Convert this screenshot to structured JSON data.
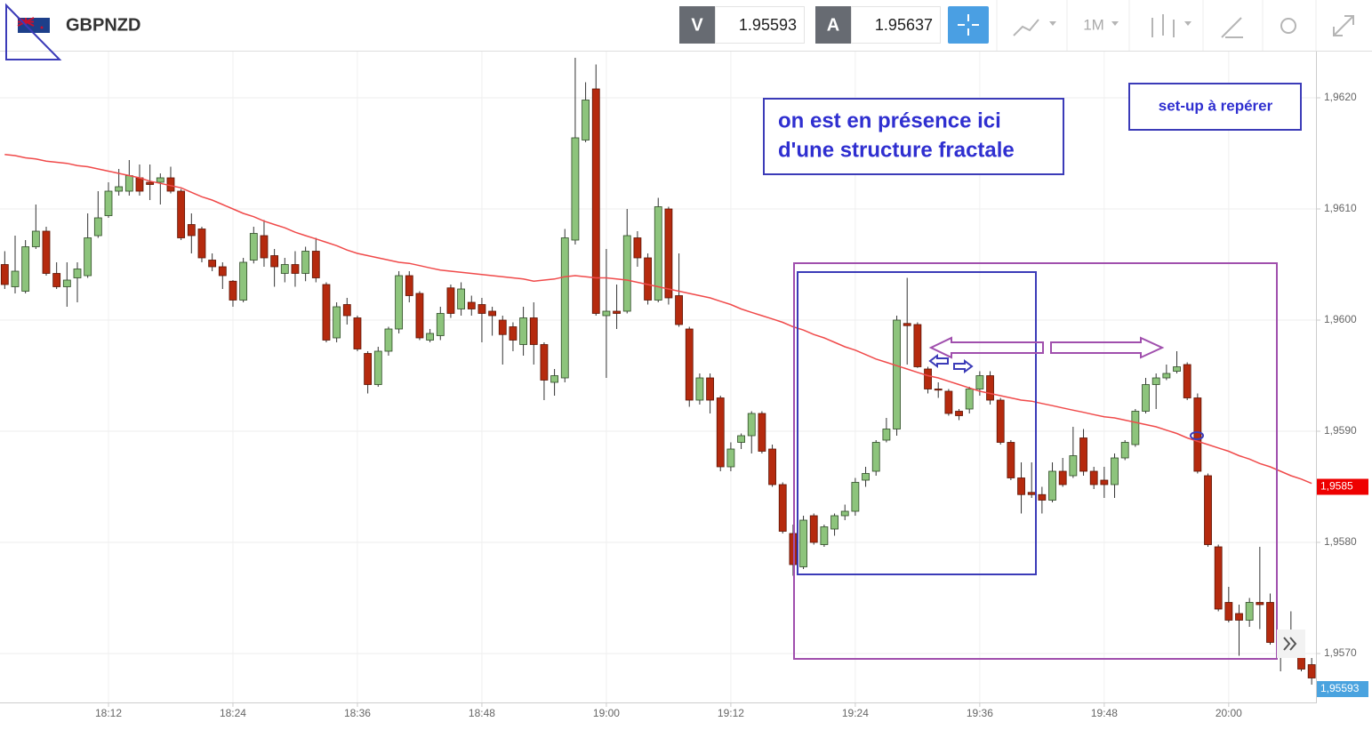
{
  "toolbar": {
    "symbol": "GBPNZD",
    "bid_label": "V",
    "bid": "1.95593",
    "ask_label": "A",
    "ask": "1.95637",
    "timeframe": "1M"
  },
  "chart_data": {
    "type": "candlestick",
    "categories": [
      null,
      null,
      null,
      null,
      null,
      null,
      null,
      null,
      null,
      null,
      "18:12",
      null,
      null,
      null,
      null,
      null,
      null,
      null,
      null,
      null,
      null,
      null,
      "18:24",
      null,
      null,
      null,
      null,
      null,
      null,
      null,
      null,
      null,
      null,
      null,
      "18:36",
      null,
      null,
      null,
      null,
      null,
      null,
      null,
      null,
      null,
      null,
      null,
      "18:48",
      null,
      null,
      null,
      null,
      null,
      null,
      null,
      null,
      null,
      null,
      null,
      "19:00",
      null,
      null,
      null,
      null,
      null,
      null,
      null,
      null,
      null,
      null,
      null,
      "19:12",
      null,
      null,
      null,
      null,
      null,
      null,
      null,
      null,
      null,
      null,
      null,
      "19:24",
      null,
      null,
      null,
      null,
      null,
      null,
      null,
      null,
      null,
      null,
      null,
      "19:36",
      null,
      null,
      null,
      null,
      null,
      null,
      null,
      null,
      null,
      null,
      null,
      "19:48",
      null,
      null,
      null,
      null,
      null,
      null,
      null,
      null,
      null,
      null,
      null,
      "20:00",
      null,
      null,
      null,
      null,
      null,
      null,
      null,
      null
    ],
    "open": [
      1.9605,
      1.9603,
      1.96026,
      1.96066,
      1.9608,
      1.96042,
      1.9603,
      1.96038,
      1.9604,
      1.96076,
      1.96094,
      1.96116,
      1.96116,
      1.96128,
      1.96124,
      1.96124,
      1.96128,
      1.96116,
      1.96086,
      1.96082,
      1.96054,
      1.96048,
      1.96035,
      1.96018,
      1.96054,
      1.96076,
      1.96058,
      1.96042,
      1.9605,
      1.96042,
      1.96062,
      1.96032,
      1.95984,
      1.96014,
      1.96002,
      1.9597,
      1.95942,
      1.95972,
      1.95992,
      1.9604,
      1.96024,
      1.95982,
      1.95986,
      1.96029,
      1.9601,
      1.96016,
      1.96014,
      1.96008,
      1.96,
      1.95994,
      1.95978,
      1.96002,
      1.95978,
      1.95944,
      1.95948,
      1.96072,
      1.96162,
      1.96208,
      1.96004,
      1.96008,
      1.96008,
      1.96074,
      1.96056,
      1.96018,
      1.961,
      1.96022,
      1.95992,
      1.95928,
      1.95948,
      1.9593,
      1.95868,
      1.9589,
      1.95896,
      1.95916,
      1.95884,
      1.95852,
      1.95808,
      1.95778,
      1.95824,
      1.95798,
      1.95812,
      1.95824,
      1.95828,
      1.95856,
      1.95864,
      1.95892,
      1.95902,
      1.95997,
      1.95996,
      1.95956,
      1.95938,
      1.95936,
      1.95918,
      1.9592,
      1.95938,
      1.9595,
      1.95928,
      1.9589,
      1.95858,
      1.95845,
      1.95843,
      1.95838,
      1.95864,
      1.9586,
      1.95894,
      1.95864,
      1.95856,
      1.95852,
      1.95876,
      1.95888,
      1.95918,
      1.95942,
      1.95948,
      1.95954,
      1.9596,
      1.9593,
      1.9586,
      1.95796,
      1.95746,
      1.95736,
      1.9573,
      1.95746,
      1.95746,
      1.9571,
      1.9571,
      1.95698,
      1.9569
    ],
    "high": [
      1.96062,
      1.96076,
      1.96072,
      1.96104,
      1.96084,
      1.96052,
      1.96052,
      1.96052,
      1.96096,
      1.96116,
      1.96124,
      1.96136,
      1.96144,
      1.9614,
      1.9614,
      1.96132,
      1.96138,
      1.96118,
      1.96096,
      1.96084,
      1.9606,
      1.96052,
      1.96036,
      1.96056,
      1.96084,
      1.9609,
      1.96064,
      1.96056,
      1.96062,
      1.96066,
      1.96074,
      1.96034,
      1.96016,
      1.9602,
      1.96004,
      1.95972,
      1.95976,
      1.95994,
      1.96044,
      1.96044,
      1.96026,
      1.95992,
      1.96012,
      1.96032,
      1.96034,
      1.96022,
      1.9602,
      1.96012,
      1.96004,
      1.95998,
      1.96012,
      1.96016,
      1.9598,
      1.95956,
      1.96082,
      1.96236,
      1.96214,
      1.9623,
      1.96064,
      1.96032,
      1.961,
      1.9608,
      1.9606,
      1.9611,
      1.96102,
      1.9606,
      1.95994,
      1.95952,
      1.95952,
      1.95932,
      1.9589,
      1.95898,
      1.95918,
      1.95918,
      1.95888,
      1.95854,
      1.95816,
      1.95824,
      1.95826,
      1.95816,
      1.95826,
      1.95834,
      1.95858,
      1.95868,
      1.95892,
      1.95912,
      1.96004,
      1.96038,
      1.95998,
      1.95958,
      1.95944,
      1.95938,
      1.9592,
      1.9594,
      1.95954,
      1.95954,
      1.9593,
      1.95892,
      1.95872,
      1.95872,
      1.9585,
      1.95872,
      1.95876,
      1.95904,
      1.95902,
      1.95868,
      1.95868,
      1.9588,
      1.95892,
      1.9592,
      1.95948,
      1.95952,
      1.9596,
      1.95972,
      1.95962,
      1.95934,
      1.95862,
      1.95798,
      1.9576,
      1.95744,
      1.9575,
      1.95796,
      1.95754,
      1.95718,
      1.95738,
      1.95702,
      1.95696
    ],
    "low": [
      1.96028,
      1.96024,
      1.96024,
      1.96064,
      1.9604,
      1.96028,
      1.96012,
      1.96016,
      1.96038,
      1.96074,
      1.96092,
      1.96112,
      1.96112,
      1.96112,
      1.96108,
      1.96104,
      1.96114,
      1.96072,
      1.9606,
      1.96052,
      1.96044,
      1.96028,
      1.96012,
      1.96016,
      1.96051,
      1.96048,
      1.9603,
      1.96034,
      1.9603,
      1.96035,
      1.96034,
      1.9598,
      1.9598,
      1.95996,
      1.95972,
      1.95934,
      1.9594,
      1.95968,
      1.95988,
      1.96016,
      1.95982,
      1.9598,
      1.95982,
      1.96002,
      1.96004,
      1.96004,
      1.9598,
      1.95986,
      1.9596,
      1.95972,
      1.95968,
      1.9596,
      1.95928,
      1.95932,
      1.95944,
      1.96068,
      1.9616,
      1.96004,
      1.95948,
      1.95992,
      1.96006,
      1.96048,
      1.96014,
      1.96016,
      1.96014,
      1.95994,
      1.95922,
      1.95924,
      1.95916,
      1.95864,
      1.95864,
      1.95884,
      1.9588,
      1.9588,
      1.9585,
      1.95808,
      1.9577,
      1.95776,
      1.95798,
      1.95796,
      1.95806,
      1.9582,
      1.95824,
      1.9585,
      1.9586,
      1.9589,
      1.95896,
      1.9596,
      1.95957,
      1.95934,
      1.9593,
      1.95914,
      1.9591,
      1.95916,
      1.95932,
      1.95924,
      1.95888,
      1.95856,
      1.95826,
      1.9584,
      1.95826,
      1.95836,
      1.9585,
      1.95858,
      1.9586,
      1.95848,
      1.9584,
      1.9584,
      1.95874,
      1.95886,
      1.95916,
      1.9592,
      1.95946,
      1.95952,
      1.95928,
      1.95862,
      1.95796,
      1.95738,
      1.95728,
      1.95698,
      1.95724,
      1.95722,
      1.95708,
      1.95684,
      1.957,
      1.95684,
      1.95672
    ],
    "close": [
      1.96032,
      1.96044,
      1.96066,
      1.9608,
      1.96042,
      1.9603,
      1.96036,
      1.96046,
      1.96074,
      1.96092,
      1.96116,
      1.9612,
      1.9613,
      1.96116,
      1.96122,
      1.96128,
      1.96116,
      1.96074,
      1.96076,
      1.96056,
      1.96048,
      1.9604,
      1.96018,
      1.96052,
      1.96078,
      1.96056,
      1.96048,
      1.9605,
      1.96042,
      1.96062,
      1.96038,
      1.95982,
      1.96012,
      1.96004,
      1.95974,
      1.95942,
      1.95972,
      1.95992,
      1.9604,
      1.96022,
      1.95984,
      1.95988,
      1.96006,
      1.96006,
      1.96028,
      1.9601,
      1.96006,
      1.96004,
      1.95987,
      1.95982,
      1.96002,
      1.95978,
      1.95946,
      1.9595,
      1.96074,
      1.96164,
      1.96198,
      1.96006,
      1.96008,
      1.96006,
      1.96076,
      1.96056,
      1.96018,
      1.96102,
      1.9602,
      1.95996,
      1.95928,
      1.95948,
      1.95928,
      1.95868,
      1.95884,
      1.95896,
      1.95916,
      1.95882,
      1.95852,
      1.9581,
      1.9578,
      1.9582,
      1.958,
      1.95814,
      1.95824,
      1.95828,
      1.95854,
      1.95862,
      1.9589,
      1.95902,
      1.96,
      1.95995,
      1.95958,
      1.95938,
      1.95937,
      1.95916,
      1.95914,
      1.95938,
      1.9595,
      1.95928,
      1.9589,
      1.95858,
      1.95843,
      1.95843,
      1.95838,
      1.95864,
      1.95852,
      1.95878,
      1.95864,
      1.95852,
      1.95852,
      1.95876,
      1.9589,
      1.95918,
      1.95942,
      1.95948,
      1.95952,
      1.95958,
      1.9593,
      1.95864,
      1.95798,
      1.9574,
      1.9573,
      1.9573,
      1.95746,
      1.95744,
      1.9571,
      1.95709,
      1.95706,
      1.95686,
      1.95678
    ],
    "up_color": "#8dc47c",
    "down_color": "#b52a0e",
    "moving_average": {
      "color": "#f04a4a",
      "values": [
        1.96149,
        1.96148,
        1.96146,
        1.96145,
        1.96143,
        1.96142,
        1.96141,
        1.96139,
        1.96138,
        1.96136,
        1.96134,
        1.96132,
        1.9613,
        1.96128,
        1.96125,
        1.96123,
        1.96121,
        1.96119,
        1.96115,
        1.96111,
        1.96108,
        1.96104,
        1.961,
        1.96096,
        1.96093,
        1.96089,
        1.96086,
        1.96083,
        1.96079,
        1.96076,
        1.96073,
        1.9607,
        1.96067,
        1.96063,
        1.9606,
        1.96058,
        1.96056,
        1.96054,
        1.96052,
        1.96051,
        1.96049,
        1.96047,
        1.96045,
        1.96044,
        1.96043,
        1.96042,
        1.96041,
        1.9604,
        1.96039,
        1.96038,
        1.96037,
        1.96035,
        1.96036,
        1.96037,
        1.96039,
        1.9604,
        1.96039,
        1.96038,
        1.96038,
        1.96037,
        1.96036,
        1.96034,
        1.96032,
        1.9603,
        1.96028,
        1.96026,
        1.96024,
        1.96022,
        1.9602,
        1.96017,
        1.96014,
        1.9601,
        1.96007,
        1.96004,
        1.96001,
        1.95998,
        1.95994,
        1.95991,
        1.95987,
        1.95984,
        1.9598,
        1.95976,
        1.95973,
        1.95969,
        1.95965,
        1.95962,
        1.95959,
        1.95956,
        1.95953,
        1.9595,
        1.95948,
        1.95945,
        1.95942,
        1.95939,
        1.95936,
        1.95934,
        1.95932,
        1.9593,
        1.95928,
        1.95927,
        1.95925,
        1.95923,
        1.95921,
        1.95919,
        1.95917,
        1.95915,
        1.95913,
        1.95912,
        1.9591,
        1.95908,
        1.95906,
        1.95904,
        1.95901,
        1.95898,
        1.95894,
        1.95891,
        1.95888,
        1.95885,
        1.95882,
        1.95878,
        1.95875,
        1.95871,
        1.95868,
        1.95864,
        1.9586,
        1.95857,
        1.95853
      ]
    },
    "ylim": [
      1.95656,
      1.9624
    ],
    "yticks": [
      {
        "value": 1.957,
        "label": "1,9570"
      },
      {
        "value": 1.958,
        "label": "1,9580"
      },
      {
        "value": 1.959,
        "label": "1,9590"
      },
      {
        "value": 1.96,
        "label": "1,9600"
      },
      {
        "value": 1.961,
        "label": "1,9610"
      },
      {
        "value": 1.962,
        "label": "1,9620"
      }
    ],
    "grid": true,
    "price_tags": [
      {
        "value": 1.9585,
        "label": "1,9585"
      },
      {
        "value": 1.95593,
        "label": "1,95593"
      }
    ],
    "annotations": [
      [
        "on est en présence ici",
        "d'une structure fractale"
      ],
      [
        "set-up à repérer"
      ]
    ]
  }
}
